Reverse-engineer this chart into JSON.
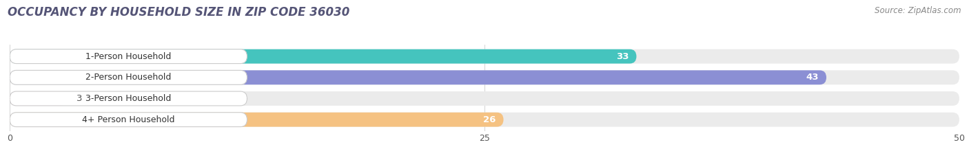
{
  "title": "OCCUPANCY BY HOUSEHOLD SIZE IN ZIP CODE 36030",
  "source": "Source: ZipAtlas.com",
  "categories": [
    "1-Person Household",
    "2-Person Household",
    "3-Person Household",
    "4+ Person Household"
  ],
  "values": [
    33,
    43,
    3,
    26
  ],
  "bar_colors": [
    "#45C4BE",
    "#8B8FD4",
    "#F4A4BC",
    "#F5C282"
  ],
  "xlim": [
    0,
    50
  ],
  "xticks": [
    0,
    25,
    50
  ],
  "bg_color": "#FFFFFF",
  "bar_bg_color": "#EBEBEB",
  "title_fontsize": 12,
  "source_fontsize": 8.5,
  "bar_label_fontsize": 9.5,
  "category_fontsize": 9
}
